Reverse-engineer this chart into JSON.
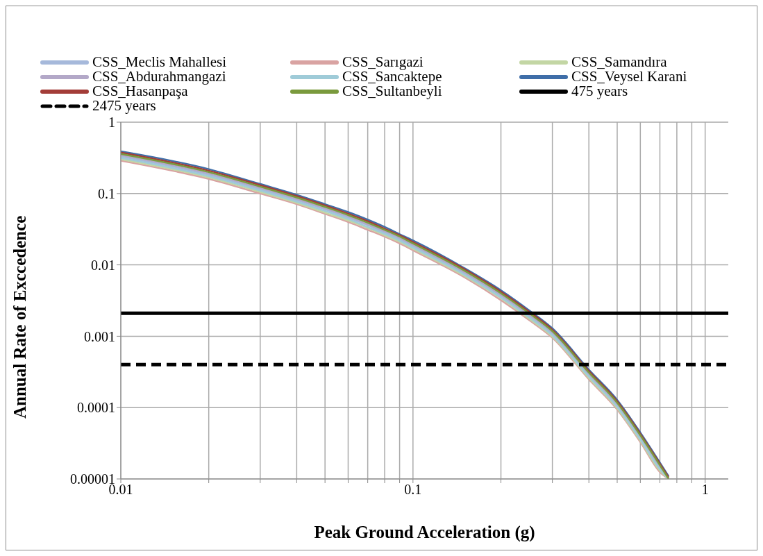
{
  "chart_data": {
    "type": "line",
    "xlabel": "Peak Ground Acceleration (g)",
    "ylabel": "Annual Rate of Exccedence",
    "log": "xy",
    "grid": true,
    "legend": "top",
    "line_style": "solid",
    "marker": "none",
    "x": [
      0.01,
      0.02,
      0.03,
      0.04,
      0.05,
      0.06,
      0.07,
      0.08,
      0.09,
      0.1,
      0.15,
      0.2,
      0.25,
      0.3,
      0.4,
      0.5,
      0.6,
      0.7,
      0.75
    ],
    "xlim": [
      0.01,
      1.2
    ],
    "xticks": [
      0.01,
      {
        "value": 0.02,
        "label": null
      },
      {
        "value": 0.03,
        "label": null
      },
      {
        "value": 0.04,
        "label": null
      },
      {
        "value": 0.05,
        "label": null
      },
      {
        "value": 0.06,
        "label": null
      },
      {
        "value": 0.07,
        "label": null
      },
      {
        "value": 0.08,
        "label": null
      },
      {
        "value": 0.09,
        "label": null
      },
      0.1,
      {
        "value": 0.2,
        "label": null
      },
      {
        "value": 0.3,
        "label": null
      },
      {
        "value": 0.4,
        "label": null
      },
      {
        "value": 0.5,
        "label": null
      },
      {
        "value": 0.6,
        "label": null
      },
      {
        "value": 0.7,
        "label": null
      },
      {
        "value": 0.8,
        "label": null
      },
      {
        "value": 0.9,
        "label": null
      },
      1
    ],
    "ylim": [
      1e-05,
      1
    ],
    "yticks": [
      {
        "value": 1e-05,
        "label": "0.00001"
      },
      0.0001,
      0.001,
      0.01,
      0.1,
      1
    ],
    "series": [
      {
        "name": "CSS_Meclis Mahallesi",
        "color": "#a6b9db",
        "values": [
          0.33,
          0.183,
          0.115,
          0.081,
          0.06,
          0.046,
          0.036,
          0.0284,
          0.0229,
          0.0183,
          0.0076,
          0.0037,
          0.0019,
          0.00108,
          0.000284,
          0.000107,
          3.76e-05,
          1.43e-05,
          1e-05
        ]
      },
      {
        "name": "CSS_Sarıgazi",
        "color": "#d9a3a2",
        "values": [
          0.289,
          0.16,
          0.1,
          0.071,
          0.052,
          0.04,
          0.031,
          0.0249,
          0.02,
          0.016,
          0.0067,
          0.0032,
          0.00168,
          0.00095,
          0.000249,
          9.4e-05,
          3.29e-05,
          1.25e-05,
          1e-05
        ]
      },
      {
        "name": "CSS_Samandıra",
        "color": "#c3d6a4",
        "values": [
          0.302,
          0.168,
          0.105,
          0.074,
          0.054,
          0.042,
          0.033,
          0.026,
          0.021,
          0.0168,
          0.007,
          0.0034,
          0.00176,
          0.00099,
          0.00026,
          9.8e-05,
          3.44e-05,
          1.31e-05,
          1e-05
        ]
      },
      {
        "name": "CSS_Abdurahmangazi",
        "color": "#b3a8c8",
        "values": [
          0.345,
          0.191,
          0.12,
          0.084,
          0.062,
          0.048,
          0.037,
          0.0297,
          0.024,
          0.0191,
          0.0079,
          0.0038,
          0.002,
          0.00113,
          0.000297,
          0.000112,
          3.92e-05,
          1.49e-05,
          1e-05
        ]
      },
      {
        "name": "CSS_Sancaktepe",
        "color": "#9fcbd8",
        "values": [
          0.315,
          0.175,
          0.11,
          0.077,
          0.057,
          0.044,
          0.034,
          0.0272,
          0.0219,
          0.0175,
          0.0073,
          0.0035,
          0.00184,
          0.00103,
          0.000272,
          0.000102,
          3.59e-05,
          1.37e-05,
          1e-05
        ]
      },
      {
        "name": "CSS_Veysel Karani",
        "color": "#3f6ea8",
        "values": [
          0.39,
          0.22,
          0.136,
          0.096,
          0.071,
          0.055,
          0.043,
          0.034,
          0.027,
          0.022,
          0.009,
          0.0044,
          0.0023,
          0.00129,
          0.00034,
          0.000128,
          4.47e-05,
          1.7e-05,
          1.09e-05
        ]
      },
      {
        "name": "CSS_Hasanpaşa",
        "color": "#a33d38",
        "values": [
          0.376,
          0.209,
          0.131,
          0.092,
          0.068,
          0.052,
          0.041,
          0.032,
          0.026,
          0.0209,
          0.0087,
          0.0042,
          0.0022,
          0.00123,
          0.000324,
          0.000122,
          4.28e-05,
          1.63e-05,
          1.05e-05
        ]
      },
      {
        "name": "CSS_Sultanbeyli",
        "color": "#7a9a3d",
        "values": [
          0.36,
          0.2,
          0.125,
          0.088,
          0.065,
          0.05,
          0.039,
          0.031,
          0.025,
          0.02,
          0.0083,
          0.004,
          0.0021,
          0.00118,
          0.00031,
          0.000117,
          4.1e-05,
          1.56e-05,
          1e-05
        ]
      }
    ],
    "ref_lines": [
      {
        "axis": "y",
        "value": 0.0021,
        "label": "475 years",
        "color": "#000000",
        "line_style": "solid"
      },
      {
        "axis": "y",
        "value": 0.0004,
        "label": "2475 years",
        "color": "#000000",
        "line_style": "dashed"
      }
    ]
  }
}
